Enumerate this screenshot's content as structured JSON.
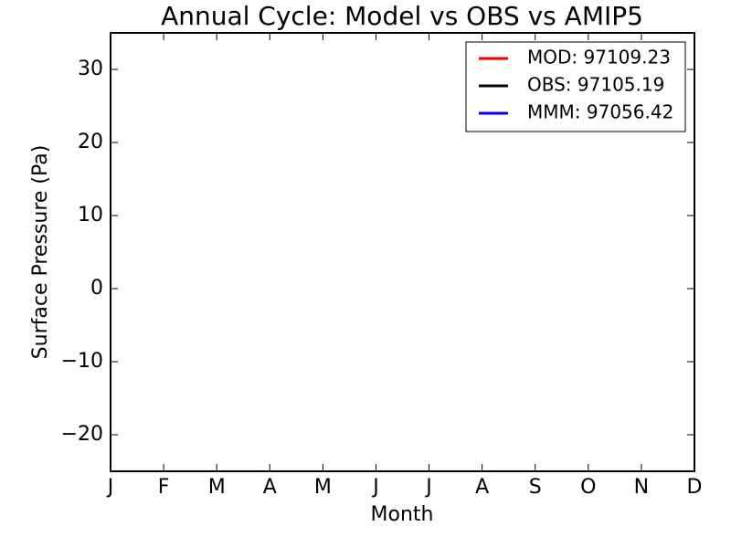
{
  "chart_data": {
    "type": "line",
    "title": "Annual Cycle: Model vs OBS vs AMIP5",
    "xlabel": "Month",
    "ylabel": "Surface Pressure (Pa)",
    "categories": [
      "J",
      "F",
      "M",
      "A",
      "M",
      "J",
      "J",
      "A",
      "S",
      "O",
      "N",
      "D"
    ],
    "series": [
      {
        "name": "MOD: 97109.23",
        "color": "#ff0000",
        "values": [
          null,
          null,
          null,
          null,
          null,
          null,
          null,
          null,
          null,
          null,
          null,
          null
        ]
      },
      {
        "name": "OBS: 97105.19",
        "color": "#000000",
        "values": [
          null,
          null,
          null,
          null,
          null,
          null,
          null,
          null,
          null,
          null,
          null,
          null
        ]
      },
      {
        "name": "MMM: 97056.42",
        "color": "#0000ff",
        "values": [
          null,
          null,
          null,
          null,
          null,
          null,
          null,
          null,
          null,
          null,
          null,
          null
        ]
      }
    ],
    "ylim": [
      -25,
      35
    ],
    "yticks": [
      {
        "value": -20,
        "label": "−20"
      },
      {
        "value": -10,
        "label": "−10"
      },
      0,
      10,
      20,
      30
    ],
    "legend": "upper right",
    "grid": false
  }
}
